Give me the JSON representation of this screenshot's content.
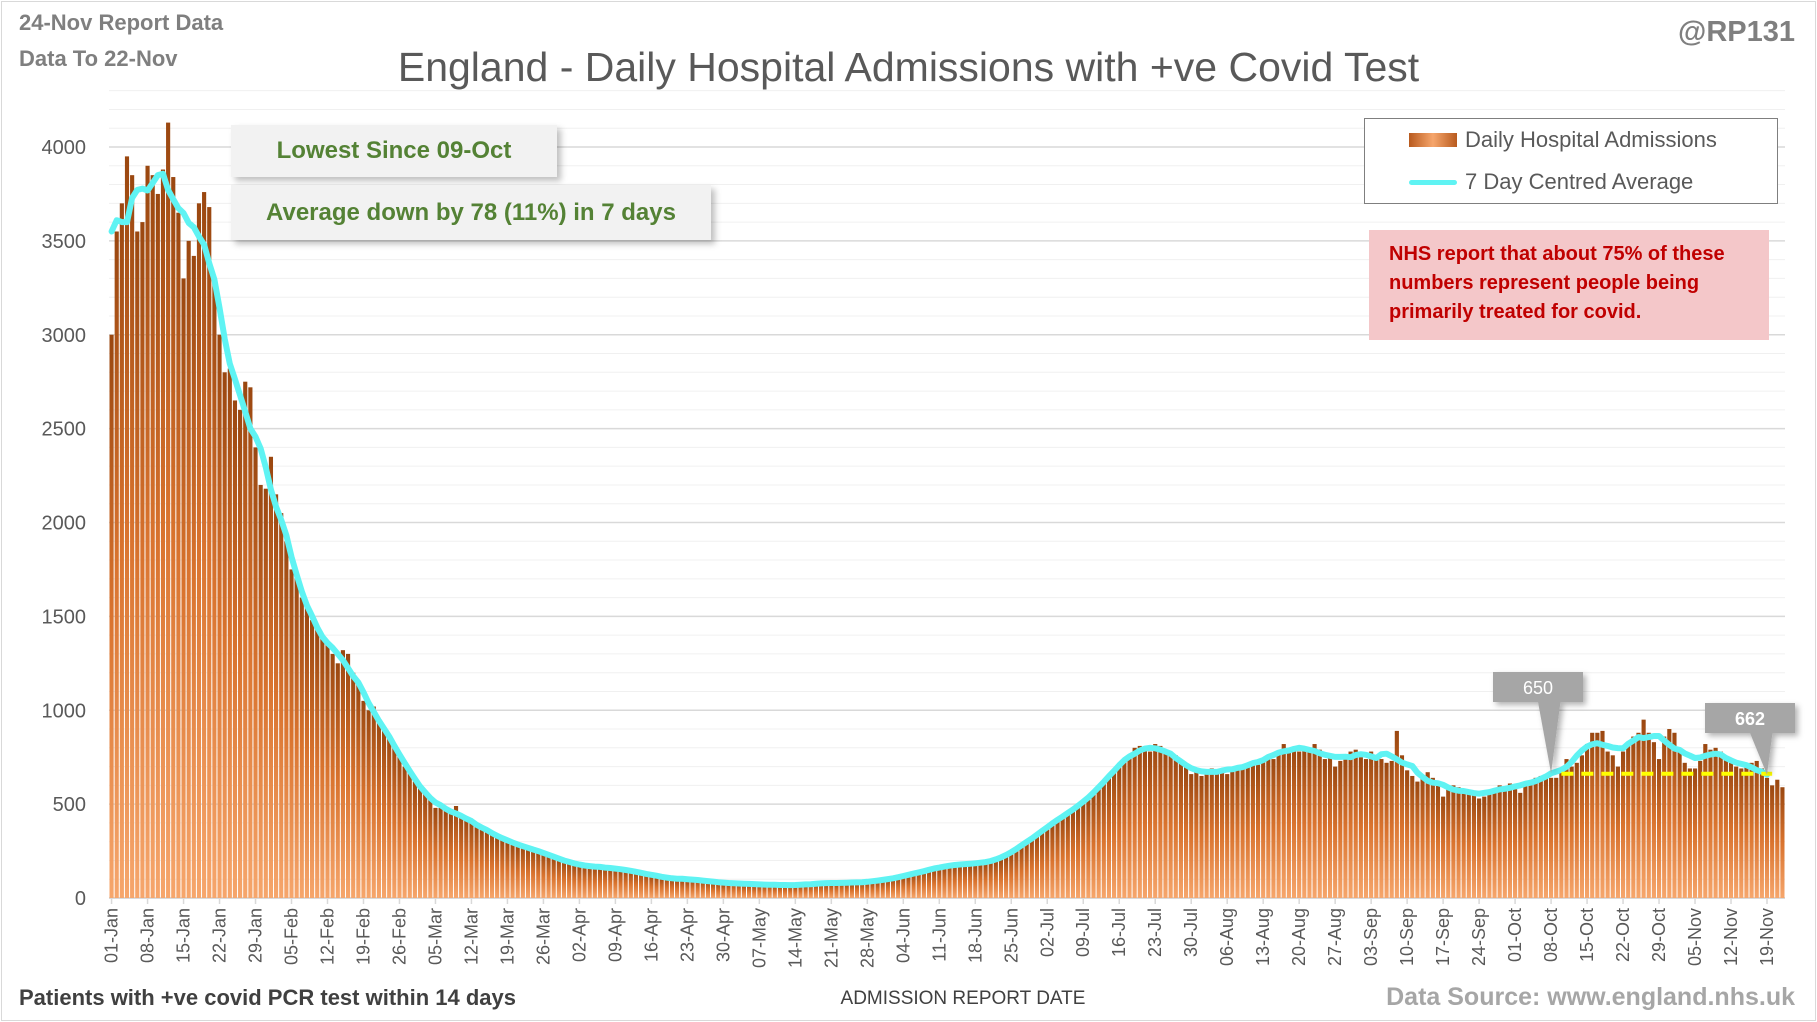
{
  "header": {
    "report_line": "24-Nov Report Data",
    "data_to_line": "Data To 22-Nov",
    "handle": "@RP131"
  },
  "annotations": {
    "lowest": "Lowest Since 09-Oct",
    "average_change": "Average down by 78 (11%) in 7 days",
    "nhs_note": "NHS report that about 75% of these numbers represent people being primarily treated for covid.",
    "callout_a": "650",
    "callout_b": "662"
  },
  "footer": {
    "note": "Patients with +ve covid PCR test within 14 days",
    "source": "Data Source: www.england.nhs.uk"
  },
  "colors": {
    "bar_top": "#9a4710",
    "bar_bottom": "#f6a66c",
    "line": "#5ff3f3",
    "ref_line": "#ffff00",
    "note_text": "#c00000",
    "note_bg": "#f4c7c9",
    "box_text": "#548235"
  },
  "chart_data": {
    "type": "bar",
    "title": "England - Daily Hospital Admissions with +ve Covid Test",
    "xlabel": "ADMISSION  REPORT DATE",
    "ylabel": "",
    "ylim": [
      0,
      4300
    ],
    "yticks": [
      0,
      500,
      1000,
      1500,
      2000,
      2500,
      3000,
      3500,
      4000
    ],
    "grid": true,
    "legend_position": "top-right",
    "legend": [
      "Daily Hospital Admissions",
      "7 Day Centred Average"
    ],
    "start_date": "01-Jan",
    "xtick_labels": [
      "01-Jan",
      "08-Jan",
      "15-Jan",
      "22-Jan",
      "29-Jan",
      "05-Feb",
      "12-Feb",
      "19-Feb",
      "26-Feb",
      "05-Mar",
      "12-Mar",
      "19-Mar",
      "26-Mar",
      "02-Apr",
      "09-Apr",
      "16-Apr",
      "23-Apr",
      "30-Apr",
      "07-May",
      "14-May",
      "21-May",
      "28-May",
      "04-Jun",
      "11-Jun",
      "18-Jun",
      "25-Jun",
      "02-Jul",
      "09-Jul",
      "16-Jul",
      "23-Jul",
      "30-Jul",
      "06-Aug",
      "13-Aug",
      "20-Aug",
      "27-Aug",
      "03-Sep",
      "10-Sep",
      "17-Sep",
      "24-Sep",
      "01-Oct",
      "08-Oct",
      "15-Oct",
      "22-Oct",
      "29-Oct",
      "05-Nov",
      "12-Nov",
      "19-Nov"
    ],
    "reference_line": {
      "value": 662,
      "from_day": 282,
      "to_day": 323
    },
    "callouts": [
      {
        "label": "650",
        "day": 280
      },
      {
        "label": "662",
        "day": 322
      }
    ],
    "series": [
      {
        "name": "Daily Hospital Admissions",
        "values": [
          3000,
          3550,
          3700,
          3950,
          3850,
          3550,
          3600,
          3900,
          3850,
          3750,
          3880,
          4130,
          3840,
          3650,
          3300,
          3500,
          3420,
          3700,
          3760,
          3680,
          3300,
          3000,
          2800,
          2820,
          2650,
          2600,
          2750,
          2720,
          2400,
          2200,
          2180,
          2350,
          2150,
          2050,
          1900,
          1750,
          1720,
          1600,
          1550,
          1480,
          1430,
          1380,
          1350,
          1300,
          1250,
          1320,
          1300,
          1200,
          1150,
          1050,
          1000,
          1020,
          950,
          900,
          870,
          820,
          760,
          700,
          680,
          620,
          590,
          560,
          530,
          480,
          480,
          470,
          450,
          490,
          430,
          420,
          410,
          390,
          370,
          360,
          350,
          330,
          320,
          300,
          290,
          280,
          280,
          270,
          260,
          250,
          240,
          230,
          220,
          210,
          200,
          190,
          180,
          170,
          175,
          165,
          170,
          160,
          170,
          160,
          160,
          150,
          150,
          145,
          140,
          140,
          130,
          120,
          115,
          110,
          110,
          105,
          100,
          100,
          95,
          100,
          105,
          95,
          90,
          85,
          80,
          75,
          80,
          85,
          80,
          75,
          75,
          70,
          70,
          72,
          75,
          70,
          68,
          70,
          66,
          65,
          70,
          72,
          75,
          78,
          80,
          76,
          80,
          82,
          85,
          80,
          78,
          82,
          85,
          85,
          88,
          90,
          95,
          100,
          105,
          110,
          115,
          120,
          130,
          140,
          145,
          150,
          155,
          160,
          170,
          180,
          175,
          180,
          185,
          180,
          180,
          185,
          190,
          195,
          200,
          210,
          220,
          240,
          260,
          280,
          300,
          320,
          340,
          350,
          370,
          400,
          420,
          440,
          460,
          470,
          480,
          500,
          530,
          560,
          590,
          620,
          650,
          680,
          700,
          740,
          760,
          800,
          810,
          790,
          780,
          820,
          810,
          790,
          780,
          760,
          720,
          700,
          660,
          680,
          650,
          670,
          690,
          670,
          680,
          660,
          680,
          700,
          710,
          700,
          720,
          710,
          730,
          760,
          740,
          780,
          820,
          790,
          800,
          780,
          790,
          800,
          820,
          790,
          740,
          760,
          700,
          730,
          760,
          780,
          790,
          750,
          740,
          780,
          760,
          740,
          720,
          730,
          890,
          760,
          680,
          650,
          620,
          650,
          670,
          640,
          600,
          540,
          580,
          600,
          590,
          570,
          560,
          560,
          530,
          540,
          560,
          570,
          600,
          590,
          610,
          580,
          560,
          600,
          620,
          640,
          650,
          650,
          640,
          640,
          690,
          740,
          700,
          720,
          760,
          820,
          880,
          880,
          890,
          780,
          760,
          700,
          780,
          820,
          860,
          880,
          950,
          880,
          830,
          740,
          860,
          900,
          880,
          780,
          720,
          690,
          690,
          730,
          820,
          790,
          800,
          780,
          740,
          720,
          700,
          690,
          700,
          720,
          730,
          690,
          640,
          600,
          630,
          590
        ]
      }
    ]
  }
}
